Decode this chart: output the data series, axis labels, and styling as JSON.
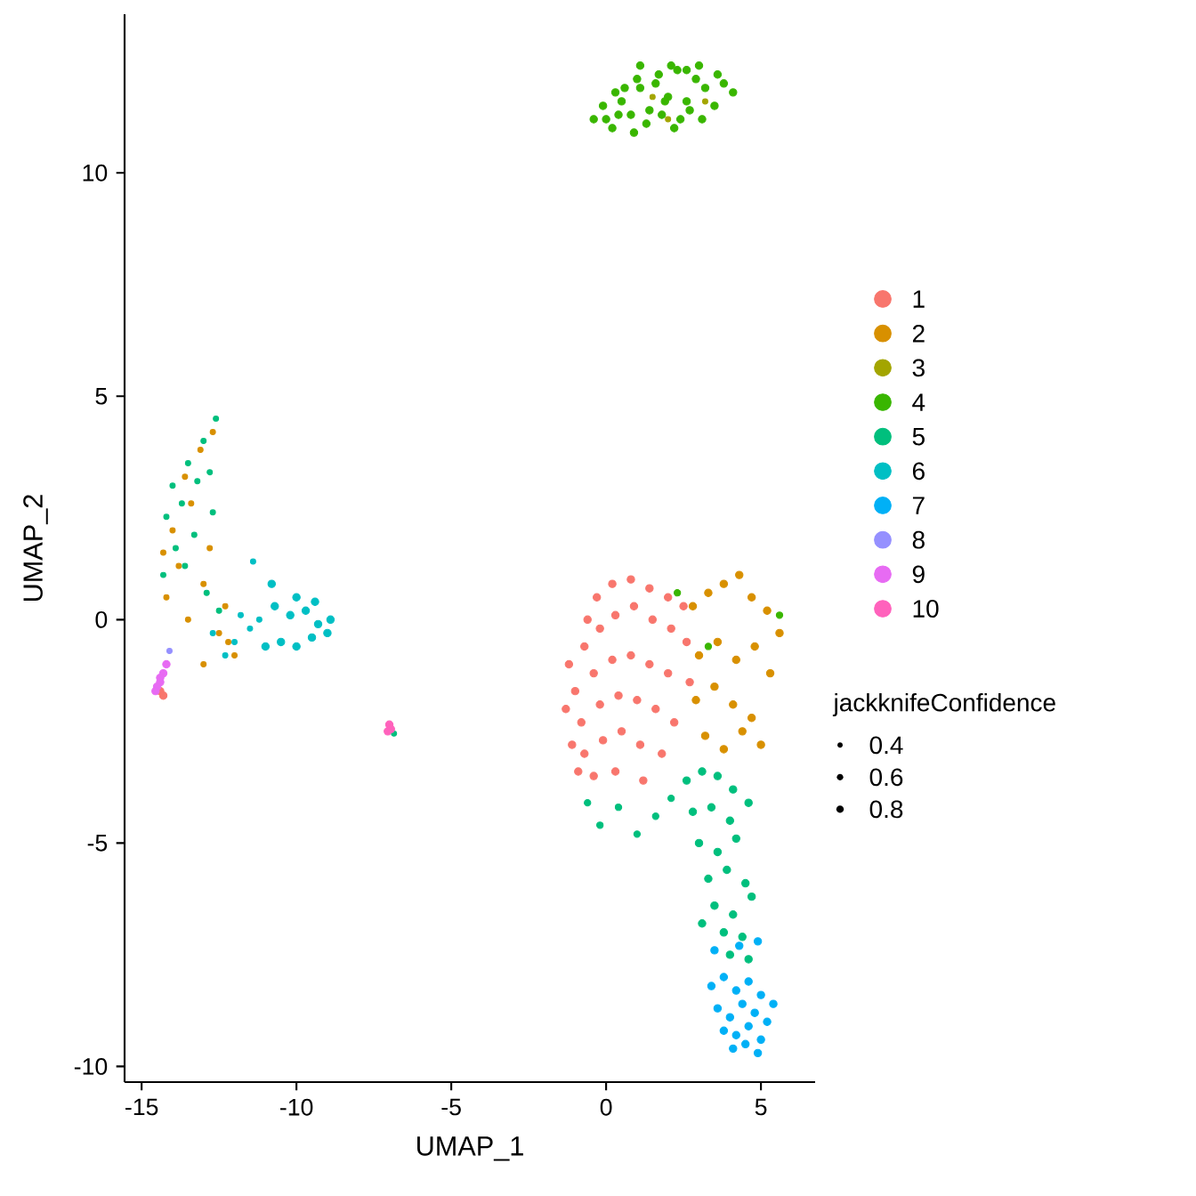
{
  "chart_data": {
    "type": "bubble",
    "xlabel": "UMAP_1",
    "ylabel": "UMAP_2",
    "legend_title": "jackknifeConfidence",
    "size_legend": [
      0.4,
      0.6,
      0.8
    ],
    "legend": "right",
    "marker": "circle",
    "grid": false,
    "xlim": [
      -15.55,
      6.75
    ],
    "ylim": [
      -10.35,
      13.55
    ],
    "xticks": [
      -15,
      -10,
      -5,
      0,
      5
    ],
    "yticks": [
      -10,
      -5,
      0,
      5,
      10
    ],
    "series": [
      {
        "name": "1",
        "color": "#F8766D",
        "x": [
          -1.2,
          -1.3,
          -1.1,
          -0.9,
          -0.6,
          -0.3,
          0.2,
          0.8,
          1.4,
          2.0,
          2.5,
          -0.7,
          -0.2,
          0.3,
          0.9,
          1.5,
          2.1,
          2.6,
          -1.0,
          -0.4,
          0.2,
          0.8,
          1.4,
          2.0,
          2.7,
          -0.8,
          -0.2,
          0.4,
          1.0,
          1.6,
          2.2,
          -0.7,
          -0.1,
          0.5,
          1.1,
          1.8,
          -0.4,
          0.3,
          1.2,
          -14.4,
          -14.3
        ],
        "values": [
          -1.0,
          -2.0,
          -2.8,
          -3.4,
          0.0,
          0.5,
          0.8,
          0.9,
          0.7,
          0.5,
          0.3,
          -0.6,
          -0.2,
          0.1,
          0.3,
          0.0,
          -0.2,
          -0.5,
          -1.6,
          -1.2,
          -0.9,
          -0.8,
          -1.0,
          -1.2,
          -1.4,
          -2.3,
          -1.9,
          -1.7,
          -1.8,
          -2.0,
          -2.3,
          -3.0,
          -2.7,
          -2.5,
          -2.8,
          -3.0,
          -3.5,
          -3.4,
          -3.6,
          -1.6,
          -1.7
        ],
        "sizes": [
          0.8,
          0.8,
          0.8,
          0.8,
          0.8,
          0.8,
          0.8,
          0.8,
          0.8,
          0.8,
          0.8,
          0.8,
          0.8,
          0.8,
          0.8,
          0.8,
          0.8,
          0.8,
          0.8,
          0.8,
          0.8,
          0.8,
          0.8,
          0.8,
          0.8,
          0.8,
          0.8,
          0.8,
          0.8,
          0.8,
          0.8,
          0.8,
          0.8,
          0.8,
          0.8,
          0.8,
          0.8,
          0.8,
          0.8,
          0.8,
          0.8
        ]
      },
      {
        "name": "2",
        "color": "#D89000",
        "x": [
          2.8,
          3.3,
          3.8,
          4.3,
          4.7,
          5.2,
          5.6,
          3.0,
          3.6,
          4.2,
          4.8,
          5.3,
          2.9,
          3.5,
          4.1,
          4.7,
          3.2,
          3.8,
          4.4,
          5.0,
          -14.2,
          -13.8,
          -13.5,
          -13.0,
          -12.5,
          -12.0,
          -14.0,
          -13.4,
          -12.8,
          -12.3,
          -13.6,
          -13.1,
          -12.7,
          -14.3,
          -12.2,
          -13.0
        ],
        "values": [
          0.3,
          0.6,
          0.8,
          1.0,
          0.5,
          0.2,
          -0.3,
          -0.8,
          -0.5,
          -0.9,
          -0.6,
          -1.2,
          -1.8,
          -1.5,
          -1.9,
          -2.2,
          -2.6,
          -2.9,
          -2.5,
          -2.8,
          0.5,
          1.2,
          0.0,
          0.8,
          -0.3,
          -0.8,
          2.0,
          2.6,
          1.6,
          0.3,
          3.2,
          3.8,
          4.2,
          1.5,
          -0.5,
          -1.0
        ],
        "sizes": [
          0.8,
          0.8,
          0.8,
          0.8,
          0.8,
          0.8,
          0.8,
          0.8,
          0.8,
          0.8,
          0.8,
          0.8,
          0.8,
          0.8,
          0.8,
          0.8,
          0.8,
          0.8,
          0.8,
          0.8,
          0.4,
          0.4,
          0.4,
          0.4,
          0.4,
          0.4,
          0.4,
          0.4,
          0.4,
          0.4,
          0.4,
          0.4,
          0.4,
          0.4,
          0.4,
          0.4
        ]
      },
      {
        "name": "3",
        "color": "#A3A500",
        "x": [
          1.5,
          3.2,
          2.0
        ],
        "values": [
          11.7,
          11.6,
          11.2
        ],
        "sizes": [
          0.4,
          0.4,
          0.4
        ]
      },
      {
        "name": "4",
        "color": "#39B600",
        "x": [
          -0.4,
          -0.1,
          0.2,
          0.5,
          0.8,
          1.1,
          1.4,
          1.7,
          2.0,
          2.3,
          2.6,
          2.9,
          3.2,
          3.5,
          3.8,
          4.1,
          0.0,
          0.4,
          0.9,
          1.3,
          1.8,
          2.2,
          2.7,
          3.1,
          3.6,
          0.6,
          1.1,
          1.6,
          2.1,
          2.6,
          3.0,
          0.3,
          1.0,
          1.9,
          2.4,
          2.3,
          5.6,
          3.3
        ],
        "values": [
          11.2,
          11.5,
          11.0,
          11.6,
          11.3,
          11.9,
          11.4,
          12.2,
          11.7,
          12.3,
          11.6,
          12.1,
          11.9,
          11.5,
          12.0,
          11.8,
          11.2,
          11.3,
          10.9,
          11.1,
          11.3,
          11.0,
          11.4,
          11.2,
          12.2,
          11.9,
          12.4,
          12.0,
          12.4,
          12.3,
          12.4,
          11.8,
          12.1,
          11.6,
          11.2,
          0.6,
          0.1,
          -0.6
        ],
        "sizes": [
          0.8,
          0.8,
          0.8,
          0.8,
          0.8,
          0.8,
          0.8,
          0.8,
          0.8,
          0.8,
          0.8,
          0.8,
          0.8,
          0.8,
          0.8,
          0.8,
          0.8,
          0.8,
          0.8,
          0.8,
          0.8,
          0.8,
          0.8,
          0.8,
          0.8,
          0.8,
          0.8,
          0.8,
          0.8,
          0.8,
          0.8,
          0.8,
          0.8,
          0.8,
          0.8,
          0.6,
          0.6,
          0.6
        ]
      },
      {
        "name": "5",
        "color": "#00BF7D",
        "x": [
          -14.0,
          -13.5,
          -13.0,
          -12.6,
          -14.2,
          -13.7,
          -13.2,
          -12.8,
          -13.9,
          -13.3,
          -12.7,
          -14.3,
          -13.6,
          -12.9,
          -12.5,
          2.6,
          3.1,
          3.6,
          4.1,
          2.8,
          3.4,
          4.0,
          4.6,
          3.0,
          3.6,
          4.2,
          3.3,
          3.9,
          4.5,
          3.5,
          4.1,
          4.7,
          3.8,
          4.4,
          4.0,
          4.6,
          3.1,
          -0.6,
          -0.2,
          0.4,
          1.0,
          1.6,
          2.1,
          -6.85
        ],
        "values": [
          3.0,
          3.5,
          4.0,
          4.5,
          2.3,
          2.6,
          3.1,
          3.3,
          1.6,
          1.9,
          2.4,
          1.0,
          1.2,
          0.6,
          0.2,
          -3.6,
          -3.4,
          -3.5,
          -3.8,
          -4.3,
          -4.2,
          -4.5,
          -4.1,
          -5.0,
          -5.2,
          -4.9,
          -5.8,
          -5.6,
          -5.9,
          -6.4,
          -6.6,
          -6.2,
          -7.0,
          -7.1,
          -7.5,
          -7.6,
          -6.8,
          -4.1,
          -4.6,
          -4.2,
          -4.8,
          -4.4,
          -4.0,
          -2.55
        ],
        "sizes": [
          0.4,
          0.4,
          0.4,
          0.4,
          0.4,
          0.4,
          0.4,
          0.4,
          0.4,
          0.4,
          0.4,
          0.4,
          0.4,
          0.4,
          0.4,
          0.8,
          0.8,
          0.8,
          0.8,
          0.8,
          0.8,
          0.8,
          0.8,
          0.8,
          0.8,
          0.8,
          0.8,
          0.8,
          0.8,
          0.8,
          0.8,
          0.8,
          0.8,
          0.8,
          0.8,
          0.8,
          0.8,
          0.6,
          0.6,
          0.6,
          0.6,
          0.6,
          0.6,
          0.4
        ]
      },
      {
        "name": "6",
        "color": "#00BFC4",
        "x": [
          -12.0,
          -11.5,
          -11.0,
          -10.5,
          -10.0,
          -9.5,
          -9.0,
          -8.9,
          -11.8,
          -11.2,
          -10.7,
          -10.2,
          -9.7,
          -9.3,
          -10.8,
          -10.0,
          -9.4,
          -11.4,
          -12.3,
          -12.7
        ],
        "values": [
          -0.5,
          -0.2,
          -0.6,
          -0.5,
          -0.6,
          -0.4,
          -0.3,
          0.0,
          0.1,
          0.0,
          0.3,
          0.1,
          0.2,
          -0.1,
          0.8,
          0.5,
          0.4,
          1.3,
          -0.8,
          -0.3
        ],
        "sizes": [
          0.4,
          0.4,
          0.8,
          0.8,
          0.8,
          0.8,
          0.8,
          0.8,
          0.4,
          0.4,
          0.8,
          0.8,
          0.8,
          0.8,
          0.8,
          0.8,
          0.8,
          0.4,
          0.4,
          0.4
        ]
      },
      {
        "name": "7",
        "color": "#00B0F6",
        "x": [
          3.4,
          3.8,
          4.2,
          4.6,
          5.0,
          5.4,
          3.6,
          4.0,
          4.4,
          4.8,
          5.2,
          3.8,
          4.2,
          4.6,
          5.0,
          4.1,
          4.5,
          4.9,
          3.5,
          4.3,
          4.9
        ],
        "values": [
          -8.2,
          -8.0,
          -8.3,
          -8.1,
          -8.4,
          -8.6,
          -8.7,
          -8.9,
          -8.6,
          -8.8,
          -9.0,
          -9.2,
          -9.3,
          -9.1,
          -9.4,
          -9.6,
          -9.5,
          -9.7,
          -7.4,
          -7.3,
          -7.2
        ],
        "sizes": [
          0.8,
          0.8,
          0.8,
          0.8,
          0.8,
          0.8,
          0.8,
          0.8,
          0.8,
          0.8,
          0.8,
          0.8,
          0.8,
          0.8,
          0.8,
          0.8,
          0.8,
          0.8,
          0.8,
          0.8,
          0.8
        ]
      },
      {
        "name": "8",
        "color": "#9590FF",
        "x": [
          -14.1
        ],
        "values": [
          -0.7
        ],
        "sizes": [
          0.4
        ]
      },
      {
        "name": "9",
        "color": "#E76BF3",
        "x": [
          -14.2,
          -14.3,
          -14.4,
          -14.5,
          -14.55,
          -14.4
        ],
        "values": [
          -1.0,
          -1.2,
          -1.4,
          -1.5,
          -1.6,
          -1.3
        ],
        "sizes": [
          0.8,
          0.8,
          0.8,
          0.8,
          0.8,
          0.8
        ]
      },
      {
        "name": "10",
        "color": "#FF62BC",
        "x": [
          -7.0,
          -6.95,
          -7.05
        ],
        "values": [
          -2.35,
          -2.45,
          -2.5
        ],
        "sizes": [
          0.8,
          0.8,
          0.8
        ]
      }
    ]
  }
}
